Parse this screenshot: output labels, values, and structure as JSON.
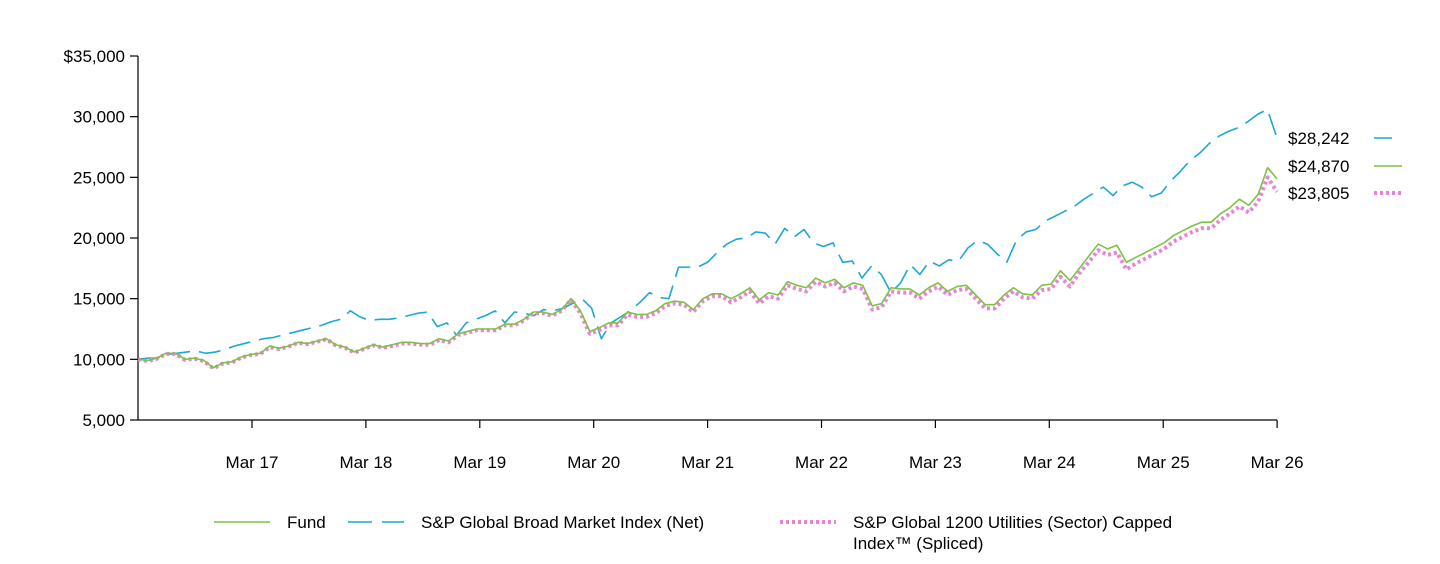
{
  "chart_data": {
    "type": "line",
    "x_tick_labels": [
      "Mar 17",
      "Mar 18",
      "Mar 19",
      "Mar 20",
      "Mar 21",
      "Mar 22",
      "Mar 23",
      "Mar 24",
      "Mar 25",
      "Mar 26"
    ],
    "y_ticks": [
      5000,
      10000,
      15000,
      20000,
      25000,
      30000,
      35000
    ],
    "y_tick_labels": [
      "5,000",
      "10,000",
      "15,000",
      "20,000",
      "25,000",
      "30,000",
      "$35,000"
    ],
    "ylim": [
      5000,
      35000
    ],
    "x_start": "Mar 16",
    "x_end": "Mar 26",
    "grid": false,
    "legend_position": "bottom",
    "series": [
      {
        "name": "Fund",
        "color": "#7dc243",
        "dash": "solid",
        "end_label": "$24,870",
        "values": [
          10000,
          9900,
          10100,
          10500,
          10500,
          10000,
          10100,
          9900,
          9300,
          9700,
          9800,
          10200,
          10400,
          10500,
          11100,
          10900,
          11100,
          11400,
          11300,
          11500,
          11700,
          11200,
          11000,
          10600,
          10900,
          11200,
          11000,
          11200,
          11400,
          11400,
          11300,
          11300,
          11700,
          11500,
          12100,
          12300,
          12500,
          12500,
          12500,
          12900,
          12900,
          13300,
          13900,
          13900,
          13700,
          14100,
          15000,
          14000,
          12300,
          12600,
          13000,
          13000,
          13900,
          13700,
          13700,
          14000,
          14600,
          14800,
          14700,
          14100,
          15000,
          15400,
          15400,
          15000,
          15400,
          15900,
          14900,
          15500,
          15300,
          16400,
          16100,
          15900,
          16700,
          16300,
          16600,
          15900,
          16300,
          16100,
          14400,
          14600,
          15900,
          15800,
          15800,
          15300,
          15900,
          16300,
          15600,
          16000,
          16100,
          15300,
          14500,
          14500,
          15300,
          15900,
          15400,
          15300,
          16100,
          16200,
          17300,
          16500,
          17500,
          18500,
          19500,
          19100,
          19400,
          18000,
          18400,
          18800,
          19200,
          19600,
          20200,
          20600,
          21000,
          21300,
          21300,
          22000,
          22500,
          23200,
          22700,
          23600,
          25800,
          24870
        ]
      },
      {
        "name": "S&P Global Broad Market Index (Net)",
        "color": "#1ba8d4",
        "dash": "long-dash",
        "end_label": "$28,242",
        "values": [
          10000,
          10100,
          10100,
          10400,
          10500,
          10600,
          10700,
          10500,
          10600,
          10800,
          11100,
          11300,
          11500,
          11700,
          11800,
          12000,
          12200,
          12400,
          12600,
          12800,
          13100,
          13300,
          14000,
          13500,
          13200,
          13300,
          13300,
          13400,
          13600,
          13800,
          13900,
          12700,
          13000,
          12000,
          13000,
          13300,
          13600,
          14000,
          13000,
          13900,
          13800,
          13600,
          14100,
          14000,
          14200,
          14600,
          15000,
          14200,
          11700,
          13000,
          13500,
          14000,
          14700,
          15500,
          15100,
          15000,
          17600,
          17600,
          17600,
          18000,
          18800,
          19500,
          19900,
          20000,
          20500,
          20400,
          19500,
          20800,
          20100,
          20700,
          19600,
          19300,
          19600,
          18000,
          18100,
          16700,
          17700,
          17000,
          15500,
          16300,
          17800,
          17000,
          18100,
          17700,
          18200,
          18100,
          19200,
          19800,
          19500,
          18700,
          18000,
          19800,
          20500,
          20700,
          21400,
          21800,
          22200,
          22600,
          23200,
          23700,
          24200,
          23500,
          24300,
          24600,
          24200,
          23400,
          23700,
          24700,
          25500,
          26400,
          27000,
          27800,
          28400,
          28800,
          29100,
          29600,
          30200,
          30600,
          28242
        ]
      },
      {
        "name": "S&P Global 1200 Utilities (Sector) Capped Index™ (Spliced)",
        "color": "#e884d8",
        "dash": "dotted",
        "end_label": "$23,805",
        "values": [
          10000,
          9850,
          10050,
          10450,
          10450,
          9950,
          10050,
          9850,
          9250,
          9650,
          9750,
          10150,
          10350,
          10450,
          11000,
          10850,
          11050,
          11350,
          11250,
          11450,
          11650,
          11150,
          10950,
          10550,
          10850,
          11150,
          10950,
          11100,
          11300,
          11300,
          11200,
          11200,
          11600,
          11400,
          12000,
          12200,
          12400,
          12400,
          12400,
          12800,
          12800,
          13200,
          13800,
          13800,
          13600,
          14000,
          14900,
          13800,
          12100,
          12400,
          12800,
          12800,
          13700,
          13500,
          13500,
          13800,
          14400,
          14600,
          14500,
          13900,
          14800,
          15200,
          15200,
          14700,
          15100,
          15600,
          14600,
          15200,
          15000,
          16100,
          15800,
          15600,
          16400,
          16000,
          16300,
          15600,
          16000,
          15800,
          14100,
          14300,
          15600,
          15500,
          15500,
          15000,
          15600,
          16000,
          15300,
          15700,
          15800,
          15000,
          14200,
          14200,
          15000,
          15600,
          15100,
          15000,
          15700,
          15800,
          16800,
          16000,
          17100,
          18000,
          19000,
          18600,
          18800,
          17400,
          17900,
          18300,
          18700,
          19100,
          19700,
          20100,
          20500,
          20800,
          20800,
          21500,
          22000,
          22600,
          22100,
          23000,
          25000,
          23805
        ]
      }
    ]
  }
}
